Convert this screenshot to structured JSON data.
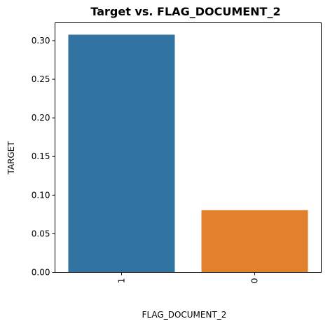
{
  "chart_data": {
    "type": "bar",
    "title": "Target vs. FLAG_DOCUMENT_2",
    "xlabel": "FLAG_DOCUMENT_2",
    "ylabel": "TARGET",
    "categories": [
      "1",
      "0"
    ],
    "values": [
      0.3077,
      0.0805
    ],
    "colors": [
      "#3274a1",
      "#e1812c"
    ],
    "ylim": [
      0,
      0.3231
    ],
    "yticks": [
      0.0,
      0.05,
      0.1,
      0.15,
      0.2,
      0.25,
      0.3
    ],
    "ytick_labels": [
      "0.00",
      "0.05",
      "0.10",
      "0.15",
      "0.20",
      "0.25",
      "0.30"
    ],
    "xtick_rotation": 90,
    "grid": false,
    "legend": "none"
  }
}
